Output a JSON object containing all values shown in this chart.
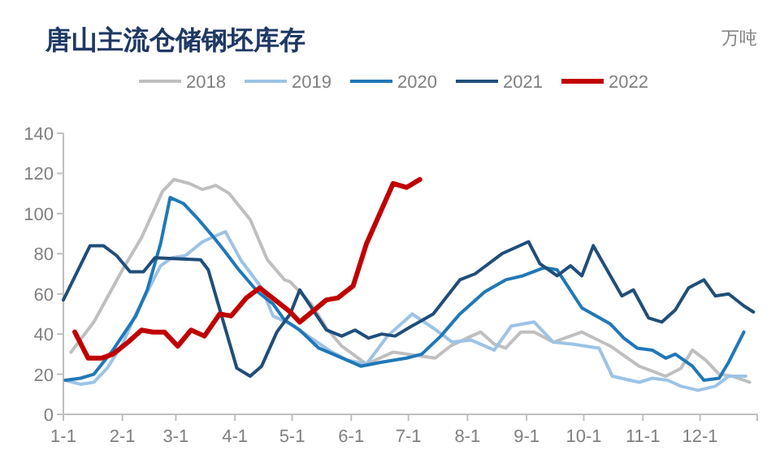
{
  "chart_data": {
    "type": "line",
    "title": "唐山主流仓储钢坯库存",
    "ylabel": "万吨",
    "legend": "top",
    "grid": false,
    "xlim": [
      "--01-01",
      "--12-31"
    ],
    "xticks": [
      {
        "value": "--01-01",
        "label": "1-1"
      },
      {
        "value": "--02-01",
        "label": "2-1"
      },
      {
        "value": "--03-01",
        "label": "3-1"
      },
      {
        "value": "--04-01",
        "label": "4-1"
      },
      {
        "value": "--05-01",
        "label": "5-1"
      },
      {
        "value": "--06-01",
        "label": "6-1"
      },
      {
        "value": "--07-01",
        "label": "7-1"
      },
      {
        "value": "--08-01",
        "label": "8-1"
      },
      {
        "value": "--09-01",
        "label": "9-1"
      },
      {
        "value": "--10-01",
        "label": "10-1"
      },
      {
        "value": "--11-01",
        "label": "11-1"
      },
      {
        "value": "--12-01",
        "label": "12-1"
      },
      {
        "value": "--12-31",
        "label": null
      }
    ],
    "ylim": [
      0,
      140
    ],
    "yticks": [
      0,
      20,
      40,
      60,
      80,
      100,
      120,
      140
    ],
    "series": [
      {
        "name": "2018",
        "color": "#bfbfbf",
        "x": [
          "--01-05",
          "--01-17",
          "--02-01",
          "--02-11",
          "--02-22",
          "--02-28",
          "--03-08",
          "--03-15",
          "--03-22",
          "--03-29",
          "--04-09",
          "--04-18",
          "--04-27",
          "--04-30",
          "--05-11",
          "--05-19",
          "--05-27",
          "--06-09",
          "--06-23",
          "--07-15",
          "--07-23",
          "--08-03",
          "--08-08",
          "--08-15",
          "--08-21",
          "--08-29",
          "--09-05",
          "--09-15",
          "--09-30",
          "--10-15",
          "--10-30",
          "--11-13",
          "--11-21",
          "--11-27",
          "--12-04",
          "--12-11",
          "--12-18",
          "--12-27"
        ],
        "values": [
          31,
          46,
          72,
          88,
          111,
          117,
          115,
          112,
          114,
          110,
          97,
          77,
          67,
          66,
          55,
          43,
          34,
          25,
          31,
          28,
          34,
          39,
          41,
          35,
          33,
          41,
          41,
          36,
          41,
          34,
          24,
          19,
          23,
          32,
          27,
          20,
          19,
          16
        ]
      },
      {
        "name": "2019",
        "color": "#9dc3e6",
        "x": [
          "--01-02",
          "--01-10",
          "--01-17",
          "--01-24",
          "--02-01",
          "--02-08",
          "--02-14",
          "--02-21",
          "--02-27",
          "--03-06",
          "--03-15",
          "--03-27",
          "--04-04",
          "--04-15",
          "--04-21",
          "--04-30",
          "--05-11",
          "--05-22",
          "--05-30",
          "--06-09",
          "--06-20",
          "--07-03",
          "--07-14",
          "--07-24",
          "--08-03",
          "--08-15",
          "--08-24",
          "--09-05",
          "--09-15",
          "--09-25",
          "--10-09",
          "--10-16",
          "--10-30",
          "--11-06",
          "--11-14",
          "--11-21",
          "--11-30",
          "--12-09",
          "--12-16",
          "--12-25"
        ],
        "values": [
          17,
          15,
          16,
          23,
          35,
          50,
          61,
          74,
          78,
          79,
          86,
          91,
          77,
          63,
          49,
          45,
          38,
          31,
          27,
          25,
          39,
          50,
          43,
          36,
          37,
          32,
          44,
          46,
          36,
          35,
          33,
          19,
          16,
          18,
          17,
          14,
          12,
          14,
          19,
          19
        ]
      },
      {
        "name": "2020",
        "color": "#1f78b8",
        "x": [
          "--01-02",
          "--01-10",
          "--01-17",
          "--01-27",
          "--02-08",
          "--02-14",
          "--02-21",
          "--02-26",
          "--03-05",
          "--03-12",
          "--03-21",
          "--03-26",
          "--04-03",
          "--04-13",
          "--04-21",
          "--04-27",
          "--05-05",
          "--05-15",
          "--05-25",
          "--06-06",
          "--06-17",
          "--06-30",
          "--07-08",
          "--07-18",
          "--07-28",
          "--08-10",
          "--08-21",
          "--08-30",
          "--09-10",
          "--09-17",
          "--09-30",
          "--10-15",
          "--10-22",
          "--10-29",
          "--11-06",
          "--11-13",
          "--11-18",
          "--11-27",
          "--12-03",
          "--12-11",
          "--12-16",
          "--12-24"
        ],
        "values": [
          17,
          18,
          20,
          32,
          49,
          62,
          85,
          108,
          105,
          98,
          88,
          82,
          72,
          61,
          55,
          47,
          42,
          33,
          29,
          24,
          26,
          28,
          30,
          39,
          50,
          61,
          67,
          69,
          73,
          72,
          53,
          45,
          38,
          33,
          32,
          28,
          30,
          24,
          17,
          18,
          26,
          41
        ]
      },
      {
        "name": "2021",
        "color": "#1f4e79",
        "x": [
          "--01-01",
          "--01-15",
          "--01-22",
          "--01-29",
          "--02-05",
          "--02-12",
          "--02-18",
          "--03-14",
          "--03-18",
          "--04-02",
          "--04-09",
          "--04-15",
          "--04-23",
          "--04-30",
          "--05-05",
          "--05-19",
          "--05-27",
          "--06-03",
          "--06-10",
          "--06-17",
          "--06-24",
          "--07-01",
          "--07-14",
          "--07-28",
          "--08-05",
          "--08-19",
          "--09-02",
          "--09-08",
          "--09-17",
          "--09-24",
          "--09-30",
          "--10-06",
          "--10-21",
          "--10-27",
          "--11-04",
          "--11-11",
          "--11-18",
          "--11-25",
          "--12-03",
          "--12-09",
          "--12-16",
          "--12-24",
          "--12-29"
        ],
        "values": [
          57,
          84,
          84,
          79,
          71,
          71,
          78,
          77,
          72,
          23,
          19,
          24,
          41,
          50,
          62,
          42,
          39,
          42,
          38,
          40,
          39,
          43,
          50,
          67,
          70,
          80,
          86,
          75,
          69,
          74,
          69,
          84,
          59,
          62,
          48,
          46,
          52,
          63,
          67,
          59,
          60,
          54,
          51
        ]
      },
      {
        "name": "2022",
        "color": "#c00000",
        "x": [
          "--01-07",
          "--01-14",
          "--01-21",
          "--01-27",
          "--02-04",
          "--02-11",
          "--02-17",
          "--02-23",
          "--03-02",
          "--03-09",
          "--03-16",
          "--03-24",
          "--03-30",
          "--04-07",
          "--04-14",
          "--04-30",
          "--05-05",
          "--05-19",
          "--05-25",
          "--06-02",
          "--06-09",
          "--06-23",
          "--06-30",
          "--07-07"
        ],
        "values": [
          41,
          28,
          28,
          30,
          36,
          42,
          41,
          41,
          34,
          42,
          39,
          50,
          49,
          58,
          63,
          51,
          46,
          57,
          58,
          64,
          85,
          115,
          113,
          117
        ]
      }
    ]
  }
}
